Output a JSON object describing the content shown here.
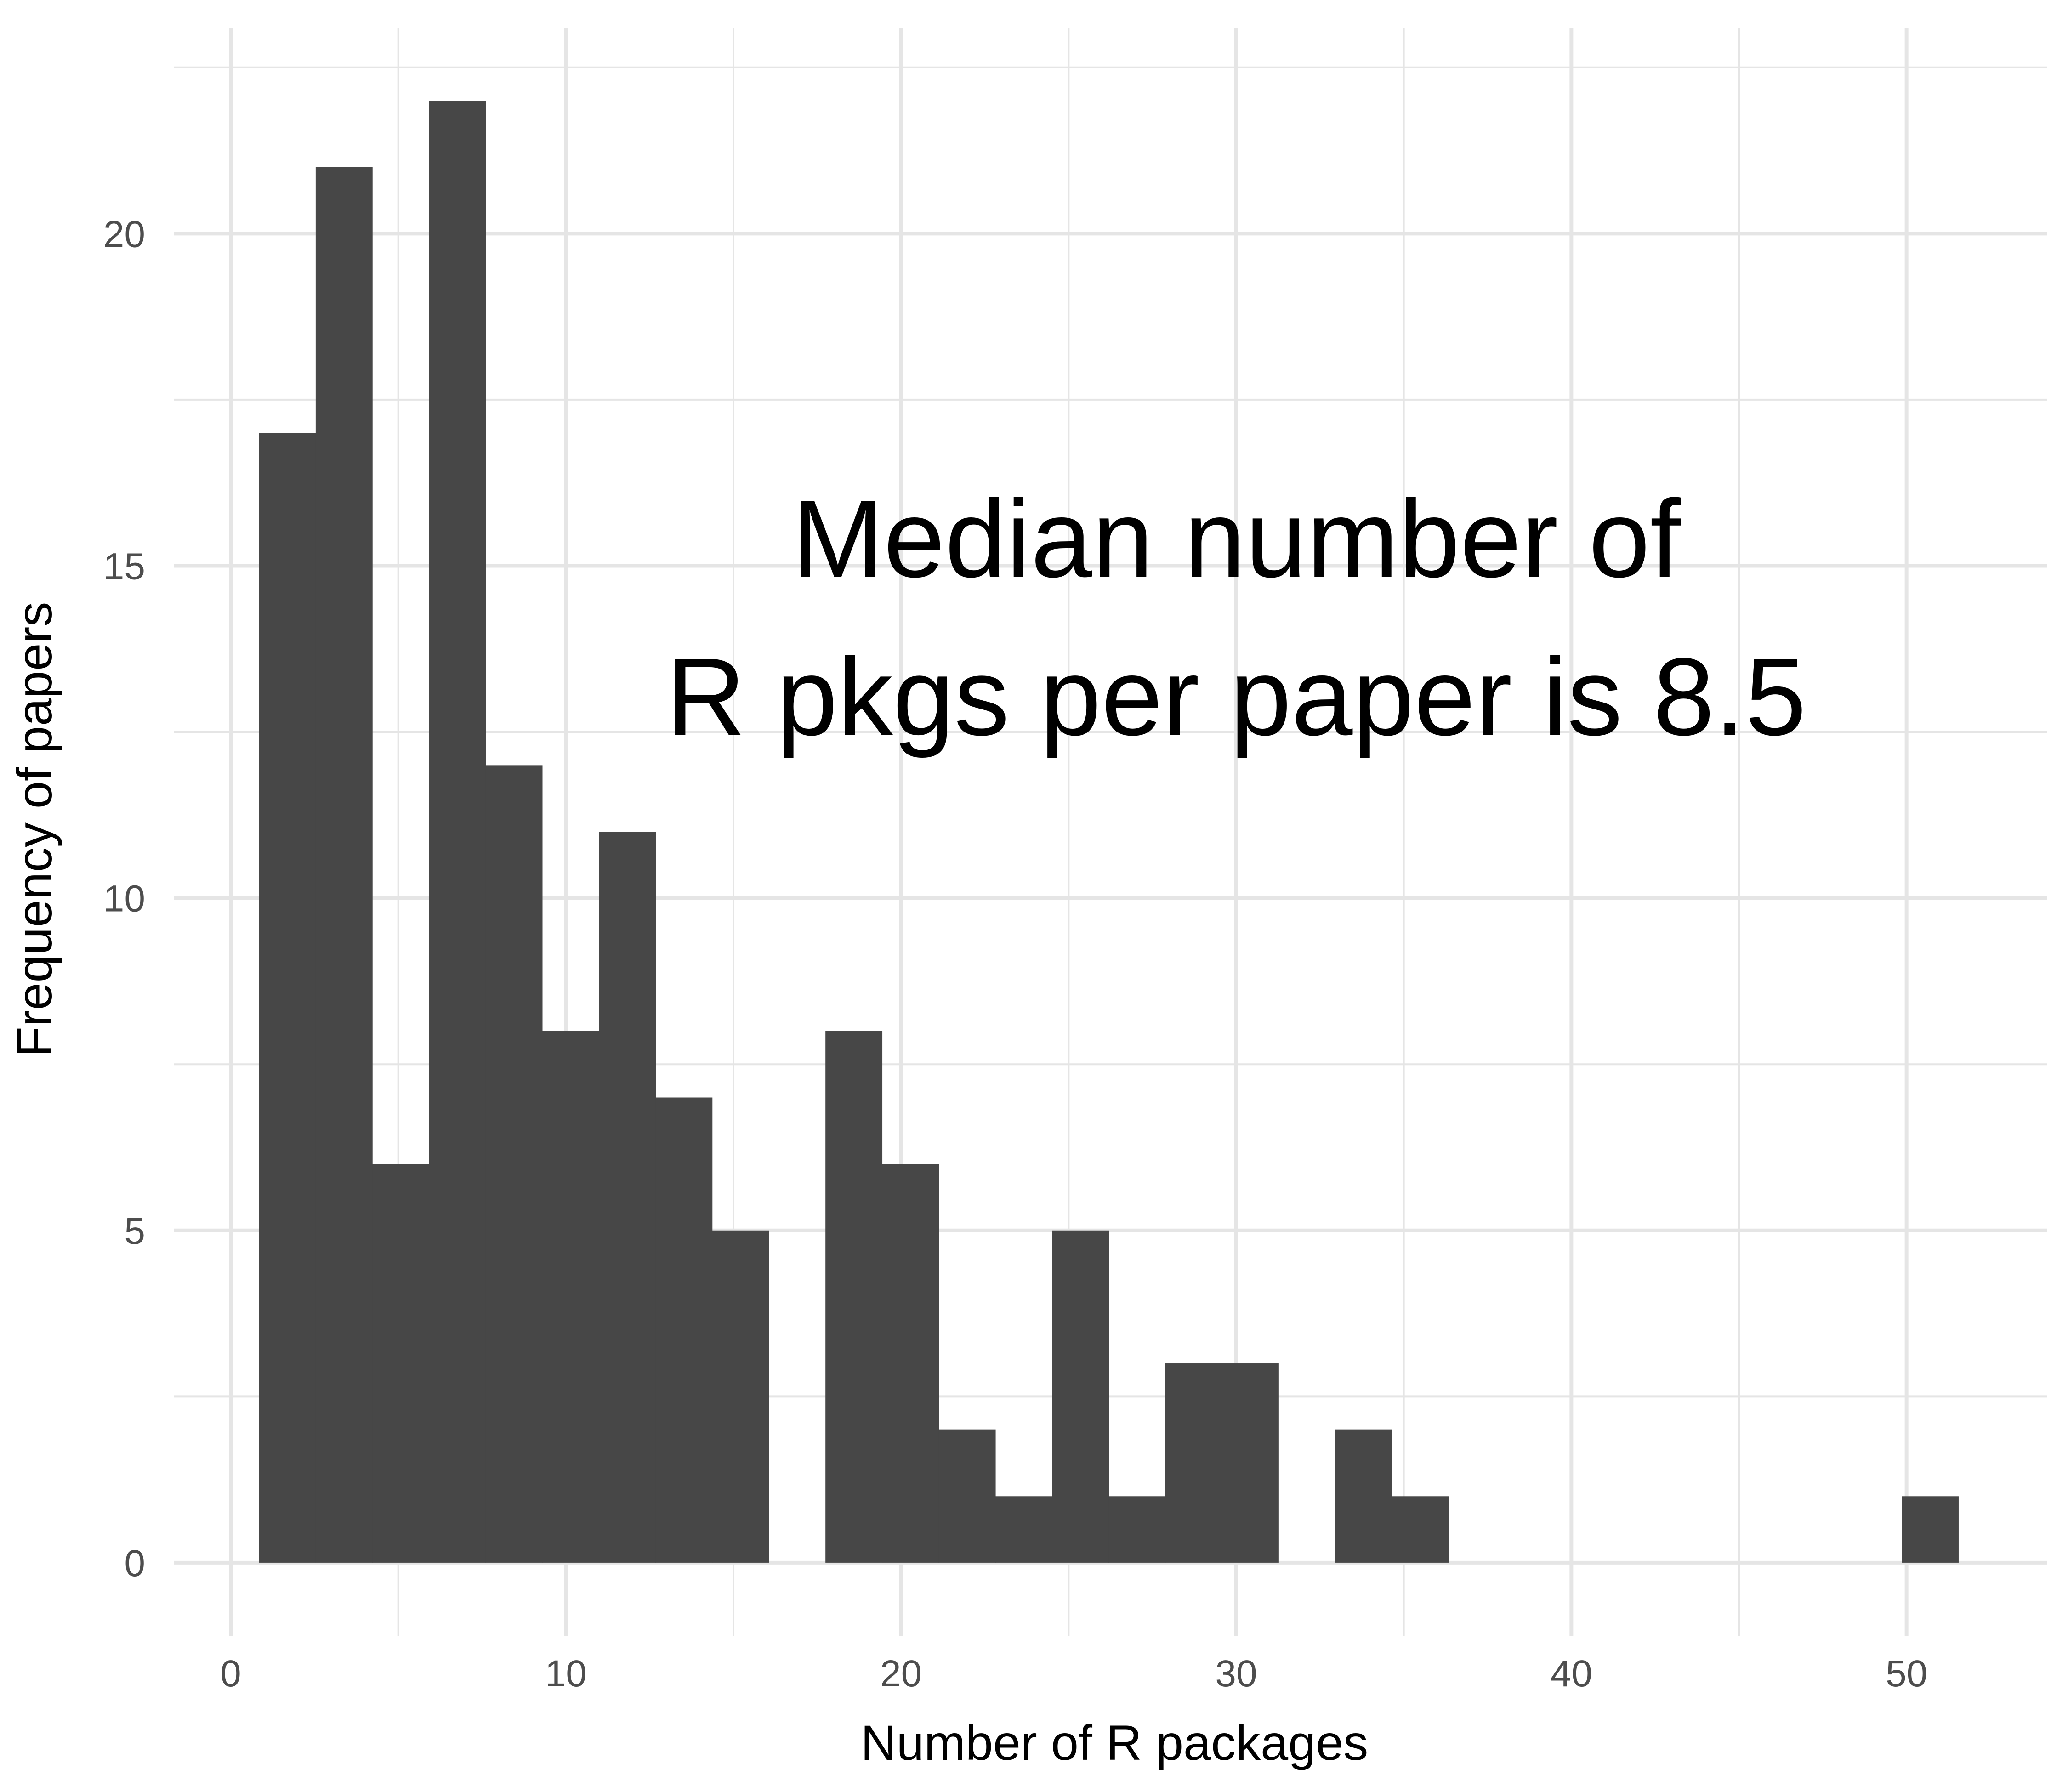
{
  "chart_data": {
    "type": "bar",
    "subtype": "histogram",
    "bins": [
      {
        "x_center": 1.69,
        "count": 17
      },
      {
        "x_center": 3.38,
        "count": 21
      },
      {
        "x_center": 5.07,
        "count": 6
      },
      {
        "x_center": 6.76,
        "count": 22
      },
      {
        "x_center": 8.45,
        "count": 12
      },
      {
        "x_center": 10.14,
        "count": 8
      },
      {
        "x_center": 11.83,
        "count": 11
      },
      {
        "x_center": 13.52,
        "count": 7
      },
      {
        "x_center": 15.21,
        "count": 5
      },
      {
        "x_center": 16.9,
        "count": 0
      },
      {
        "x_center": 18.59,
        "count": 8
      },
      {
        "x_center": 20.28,
        "count": 6
      },
      {
        "x_center": 21.97,
        "count": 2
      },
      {
        "x_center": 23.66,
        "count": 1
      },
      {
        "x_center": 25.35,
        "count": 5
      },
      {
        "x_center": 27.04,
        "count": 1
      },
      {
        "x_center": 28.73,
        "count": 3
      },
      {
        "x_center": 30.42,
        "count": 3
      },
      {
        "x_center": 32.11,
        "count": 0
      },
      {
        "x_center": 33.8,
        "count": 2
      },
      {
        "x_center": 35.49,
        "count": 1
      },
      {
        "x_center": 37.18,
        "count": 0
      },
      {
        "x_center": 38.87,
        "count": 0
      },
      {
        "x_center": 40.56,
        "count": 0
      },
      {
        "x_center": 42.25,
        "count": 0
      },
      {
        "x_center": 43.94,
        "count": 0
      },
      {
        "x_center": 45.63,
        "count": 0
      },
      {
        "x_center": 47.32,
        "count": 0
      },
      {
        "x_center": 49.01,
        "count": 0
      },
      {
        "x_center": 50.7,
        "count": 1
      }
    ],
    "bin_width": 1.69,
    "xlabel": "Number of R packages",
    "ylabel": "Frequency of papers",
    "xlim": [
      -1.7,
      54.2
    ],
    "ylim": [
      -1.1,
      23.1
    ],
    "x_ticks": [
      0,
      10,
      20,
      30,
      40,
      50
    ],
    "y_ticks": [
      0,
      5,
      10,
      15,
      20
    ],
    "x_tick_labels": [
      "0",
      "10",
      "20",
      "30",
      "40",
      "50"
    ],
    "y_tick_labels": [
      "0",
      "5",
      "10",
      "15",
      "20"
    ],
    "grid": true,
    "bar_color": "#474747",
    "grid_color": "#e5e5e5",
    "annotation": {
      "lines": [
        "Median number of",
        "R pkgs per paper is 8.5"
      ],
      "x": 30,
      "y": 14.2
    }
  }
}
